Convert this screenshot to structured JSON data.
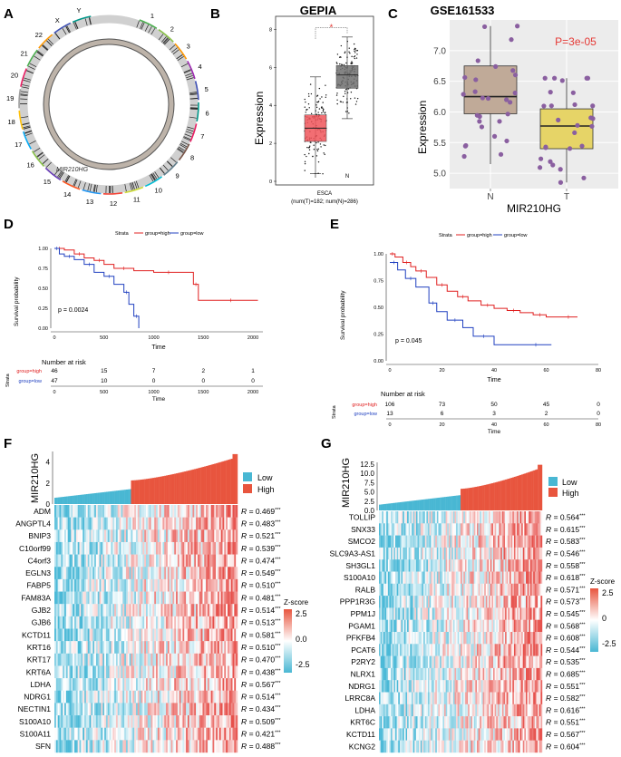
{
  "panels": {
    "A": {
      "letter": "A",
      "chromosomes": [
        "1",
        "2",
        "3",
        "4",
        "5",
        "6",
        "7",
        "8",
        "9",
        "10",
        "11",
        "12",
        "13",
        "14",
        "15",
        "16",
        "17",
        "18",
        "19",
        "20",
        "21",
        "22",
        "X",
        "Y"
      ],
      "gene_label": "MIR210HG"
    },
    "B": {
      "letter": "B",
      "title": "GEPIA",
      "ylabel": "Expression",
      "yticks": [
        "0",
        "2",
        "4",
        "6",
        "8"
      ],
      "groups": [
        "T",
        "N"
      ],
      "significance": "*",
      "xlabel": "ESCA",
      "sample_note": "(num(T)=182; num(N)=286)",
      "colors": {
        "T": "#f0555a",
        "N": "#6f6f6f"
      }
    },
    "C": {
      "letter": "C",
      "title": "GSE161533",
      "ylabel": "Expression",
      "xlabel": "MIR210HG",
      "pvalue": "P=3e-05",
      "yticks": [
        "5.0",
        "5.5",
        "6.0",
        "6.5",
        "7.0"
      ],
      "groups": [
        "N",
        "T"
      ],
      "colors": {
        "N": "#c0aa98",
        "T": "#e6d467",
        "point": "#8a5fa0",
        "pvalue": "#e53935"
      }
    },
    "D": {
      "letter": "D",
      "legend_title": "Strata",
      "legend_high": "group=high",
      "legend_low": "group=low",
      "ylabel": "Survival probability",
      "xlabel": "Time",
      "pvalue": "p = 0.0024",
      "yticks": [
        "0.00",
        "0.25",
        "0.50",
        "0.75",
        "1.00"
      ],
      "xticks": [
        "0",
        "500",
        "1000",
        "1500",
        "2000"
      ],
      "risk_title": "Number at risk",
      "risk_strata_label": "Strata",
      "risk_rows": [
        {
          "label": "group=high",
          "values": [
            "46",
            "15",
            "7",
            "2",
            "1"
          ]
        },
        {
          "label": "group=low",
          "values": [
            "47",
            "10",
            "0",
            "0",
            "0"
          ]
        }
      ]
    },
    "E": {
      "letter": "E",
      "legend_title": "Strata",
      "legend_high": "group=high",
      "legend_low": "group=low",
      "ylabel": "Survival probability",
      "xlabel": "Time",
      "pvalue": "p = 0.045",
      "yticks": [
        "0.00",
        "0.25",
        "0.50",
        "0.75",
        "1.00"
      ],
      "xticks": [
        "0",
        "20",
        "40",
        "60",
        "80"
      ],
      "risk_title": "Number at risk",
      "risk_strata_label": "Strata",
      "risk_rows": [
        {
          "label": "group=high",
          "values": [
            "106",
            "73",
            "50",
            "45",
            "0"
          ]
        },
        {
          "label": "group=low",
          "values": [
            "13",
            "6",
            "3",
            "2",
            "0"
          ]
        }
      ]
    },
    "F": {
      "letter": "F",
      "top_label": "MIR210HG",
      "top_yticks": [
        "0",
        "2",
        "4"
      ],
      "legend_low": "Low",
      "legend_high": "High",
      "zscore_title": "Z-score",
      "zscore_ticks": [
        "2.5",
        "0.0",
        "-2.5"
      ],
      "genes": [
        "ADM",
        "ANGPTL4",
        "BNIP3",
        "C10orf99",
        "C4orf3",
        "EGLN3",
        "FABP5",
        "FAM83A",
        "GJB2",
        "GJB6",
        "KCTD11",
        "KRT16",
        "KRT17",
        "KRT6A",
        "LDHA",
        "NDRG1",
        "NECTIN1",
        "S100A10",
        "S100A11",
        "SFN"
      ],
      "r_values": [
        "0.469",
        "0.483",
        "0.521",
        "0.539",
        "0.474",
        "0.549",
        "0.510",
        "0.481",
        "0.514",
        "0.513",
        "0.581",
        "0.510",
        "0.470",
        "0.438",
        "0.567",
        "0.514",
        "0.434",
        "0.509",
        "0.421",
        "0.488"
      ],
      "r_prefix": "R = ",
      "stars": "***"
    },
    "G": {
      "letter": "G",
      "top_label": "MIR210HG",
      "top_yticks": [
        "0.0",
        "2.5",
        "5.0",
        "7.5",
        "10.0",
        "12.5"
      ],
      "legend_low": "Low",
      "legend_high": "High",
      "zscore_title": "Z-score",
      "zscore_ticks": [
        "2.5",
        "0",
        "-2.5"
      ],
      "genes": [
        "TOLLIP",
        "SNX33",
        "SMCO2",
        "SLC9A3-AS1",
        "SH3GL1",
        "S100A10",
        "RALB",
        "PPP1R3G",
        "PPM1J",
        "PGAM1",
        "PFKFB4",
        "PCAT6",
        "P2RY2",
        "NLRX1",
        "NDRG1",
        "LRRC8A",
        "LDHA",
        "KRT6C",
        "KCTD11",
        "KCNG2"
      ],
      "r_values": [
        "0.564",
        "0.615",
        "0.583",
        "0.546",
        "0.558",
        "0.618",
        "0.571",
        "0.573",
        "0.545",
        "0.568",
        "0.608",
        "0.544",
        "0.535",
        "0.685",
        "0.551",
        "0.582",
        "0.616",
        "0.551",
        "0.567",
        "0.604"
      ],
      "r_prefix": "R = ",
      "stars": "***"
    }
  },
  "chart_data": [
    {
      "type": "box",
      "panel": "B",
      "title": "GEPIA",
      "groups": [
        "T",
        "N"
      ],
      "medians": [
        2.8,
        5.6
      ],
      "q1": [
        2.1,
        4.9
      ],
      "q3": [
        3.5,
        6.1
      ],
      "whisker_low": [
        0.4,
        3.3
      ],
      "whisker_high": [
        5.5,
        7.6
      ],
      "ylim": [
        0,
        8.5
      ],
      "ylabel": "Expression"
    },
    {
      "type": "box",
      "panel": "C",
      "title": "GSE161533",
      "groups": [
        "N",
        "T"
      ],
      "medians": [
        6.25,
        5.77
      ],
      "q1": [
        5.97,
        5.4
      ],
      "q3": [
        6.75,
        6.05
      ],
      "whisker_low": [
        5.15,
        4.85
      ],
      "whisker_high": [
        7.4,
        6.55
      ],
      "ylim": [
        4.75,
        7.5
      ],
      "ylabel": "Expression",
      "xlabel": "MIR210HG",
      "pvalue": "P=3e-05"
    },
    {
      "type": "line",
      "panel": "D",
      "series": [
        {
          "name": "group=high",
          "x": [
            0,
            100,
            200,
            300,
            400,
            500,
            600,
            800,
            1000,
            1300,
            1400,
            1450,
            1500,
            2050
          ],
          "y": [
            1.0,
            0.98,
            0.93,
            0.88,
            0.85,
            0.8,
            0.75,
            0.72,
            0.7,
            0.7,
            0.55,
            0.35,
            0.35,
            0.35
          ]
        },
        {
          "name": "group=low",
          "x": [
            0,
            50,
            100,
            200,
            300,
            400,
            500,
            600,
            700,
            750,
            800,
            850
          ],
          "y": [
            1.0,
            0.93,
            0.9,
            0.86,
            0.8,
            0.7,
            0.65,
            0.55,
            0.45,
            0.3,
            0.15,
            0.0
          ]
        }
      ],
      "xlim": [
        0,
        2100
      ],
      "ylim": [
        0,
        1
      ],
      "pvalue": "p = 0.0024"
    },
    {
      "type": "line",
      "panel": "E",
      "series": [
        {
          "name": "group=high",
          "x": [
            0,
            2,
            5,
            8,
            10,
            14,
            18,
            22,
            26,
            30,
            35,
            40,
            45,
            50,
            55,
            60,
            65,
            72
          ],
          "y": [
            1.0,
            0.97,
            0.92,
            0.88,
            0.84,
            0.78,
            0.71,
            0.65,
            0.6,
            0.56,
            0.52,
            0.49,
            0.47,
            0.45,
            0.43,
            0.41,
            0.41,
            0.41
          ]
        },
        {
          "name": "group=low",
          "x": [
            0,
            3,
            6,
            10,
            15,
            18,
            22,
            28,
            32,
            40,
            50,
            62
          ],
          "y": [
            0.92,
            0.85,
            0.77,
            0.69,
            0.54,
            0.46,
            0.38,
            0.31,
            0.23,
            0.15,
            0.15,
            0.15
          ]
        }
      ],
      "xlim": [
        0,
        80
      ],
      "ylim": [
        0,
        1
      ],
      "pvalue": "p = 0.045"
    },
    {
      "type": "heatmap",
      "panel": "F",
      "rows": 20,
      "low_fraction": 0.42
    },
    {
      "type": "heatmap",
      "panel": "G",
      "rows": 20,
      "low_fraction": 0.5
    }
  ]
}
